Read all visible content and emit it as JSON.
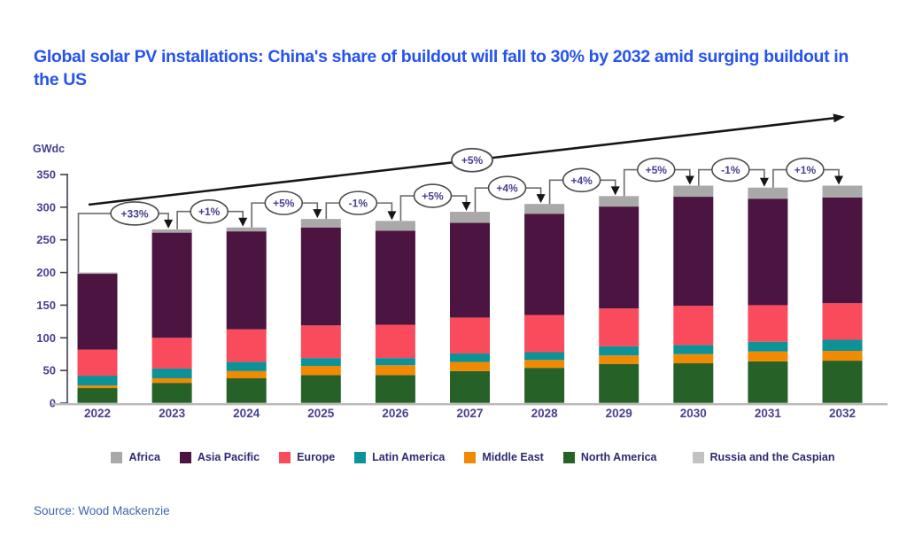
{
  "header": {
    "title": "Global solar PV installations: China's share of buildout will fall to 30% by 2032 amid surging buildout in the US"
  },
  "footer": {
    "source": "Source: Wood Mackenzie"
  },
  "colors": {
    "title": "#2653f0",
    "axis_text": "#474191",
    "pct_text": "#474191",
    "legend_text": "#2e2a72",
    "source_text": "#3b66a9",
    "axis_line": "#3f3f52",
    "baseline": "#b9b9b9",
    "connector": "#6b6b6b",
    "arrow": "#161616",
    "oval_stroke": "#4d4d4d"
  },
  "chart_data": {
    "type": "bar",
    "stacked": true,
    "title": "Global solar PV installations",
    "unit_label": "GWdc",
    "xlabel": "",
    "ylabel": "GWdc",
    "ylim": [
      0,
      350
    ],
    "yticks": [
      0,
      50,
      100,
      150,
      200,
      250,
      300,
      350
    ],
    "grid": false,
    "legend_position": "bottom",
    "categories": [
      "2022",
      "2023",
      "2024",
      "2025",
      "2026",
      "2027",
      "2028",
      "2029",
      "2030",
      "2031",
      "2032"
    ],
    "series": [
      {
        "name": "Russia and the Caspian",
        "color": "#c2c2c2",
        "values": [
          0.5,
          0.5,
          0.5,
          0.5,
          0.5,
          0.5,
          0.5,
          0.5,
          0.5,
          0.5,
          0.5
        ]
      },
      {
        "name": "North America",
        "color": "#266127",
        "values": [
          22.5,
          30.5,
          37.5,
          42.5,
          42.5,
          48.5,
          53.5,
          59.5,
          60.5,
          63.5,
          64.5
        ]
      },
      {
        "name": "Middle East",
        "color": "#f18a00",
        "values": [
          4,
          7,
          11,
          14,
          15,
          14,
          12,
          13,
          14,
          15,
          15
        ]
      },
      {
        "name": "Latin America",
        "color": "#0d9298",
        "values": [
          15,
          15,
          14,
          12,
          11,
          13,
          12,
          14,
          14,
          15,
          17
        ]
      },
      {
        "name": "Europe",
        "color": "#fa4b5c",
        "values": [
          40,
          47,
          50,
          50,
          51,
          55,
          57,
          58,
          60,
          56,
          56
        ]
      },
      {
        "name": "Asia Pacific",
        "color": "#4c1440",
        "values": [
          116,
          161,
          150,
          150,
          144,
          145,
          155,
          156,
          167,
          163,
          162
        ]
      },
      {
        "name": "Africa",
        "color": "#a9a9a9",
        "values": [
          2,
          5,
          6,
          13,
          15,
          17,
          15,
          16,
          17,
          17,
          18
        ]
      }
    ],
    "totals": [
      200,
      266,
      269,
      282,
      279,
      293,
      305,
      317,
      333,
      330,
      333
    ],
    "yoy_change_labels": [
      "+33%",
      "+1%",
      "+5%",
      "-1%",
      "+5%",
      "+4%",
      "+4%",
      "+5%",
      "-1%",
      "+1%"
    ],
    "trend_arrow_label": "+5%"
  },
  "legend": {
    "items": [
      {
        "label": "Africa",
        "color": "#a9a9a9"
      },
      {
        "label": "Asia Pacific",
        "color": "#4c1440"
      },
      {
        "label": "Europe",
        "color": "#fa4b5c"
      },
      {
        "label": "Latin America",
        "color": "#0d9298"
      },
      {
        "label": "Middle East",
        "color": "#f18a00"
      },
      {
        "label": "North America",
        "color": "#266127"
      },
      {
        "label": "Russia and the Caspian",
        "color": "#c2c2c2"
      }
    ]
  }
}
